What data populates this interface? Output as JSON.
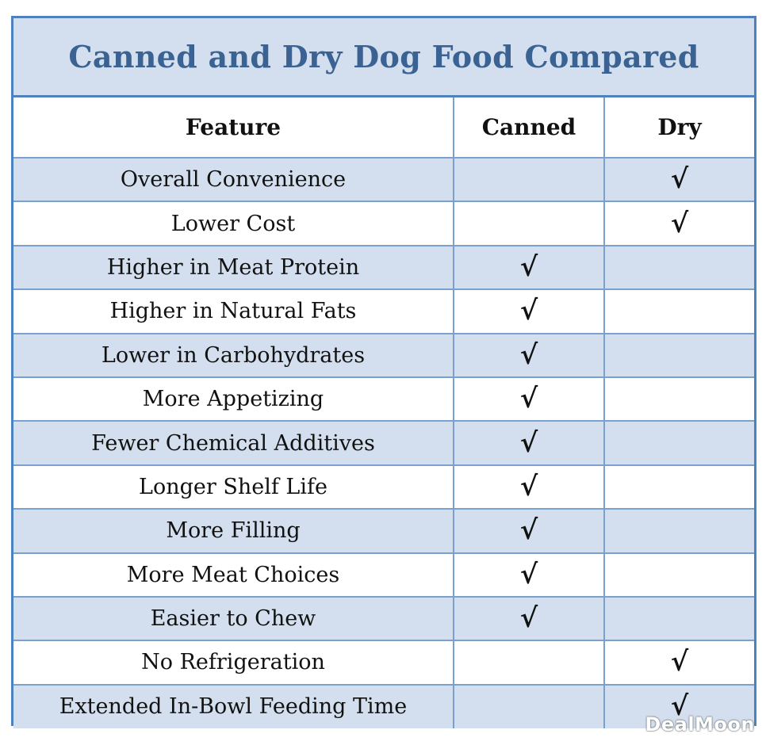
{
  "title": "Canned and Dry Dog Food Compared",
  "headers": {
    "feature": "Feature",
    "canned": "Canned",
    "dry": "Dry"
  },
  "check_mark": "√",
  "rows": [
    {
      "feature": "Overall Convenience",
      "canned": false,
      "dry": true
    },
    {
      "feature": "Lower Cost",
      "canned": false,
      "dry": true
    },
    {
      "feature": "Higher in Meat Protein",
      "canned": true,
      "dry": false
    },
    {
      "feature": "Higher in Natural Fats",
      "canned": true,
      "dry": false
    },
    {
      "feature": "Lower in Carbohydrates",
      "canned": true,
      "dry": false
    },
    {
      "feature": "More Appetizing",
      "canned": true,
      "dry": false
    },
    {
      "feature": "Fewer Chemical Additives",
      "canned": true,
      "dry": false
    },
    {
      "feature": "Longer Shelf Life",
      "canned": true,
      "dry": false
    },
    {
      "feature": "More Filling",
      "canned": true,
      "dry": false
    },
    {
      "feature": "More Meat Choices",
      "canned": true,
      "dry": false
    },
    {
      "feature": "Easier to Chew",
      "canned": true,
      "dry": false
    },
    {
      "feature": "No Refrigeration",
      "canned": false,
      "dry": true
    },
    {
      "feature": "Extended In-Bowl Feeding Time",
      "canned": false,
      "dry": true
    }
  ],
  "watermark": "DealMoon",
  "colors": {
    "border": "#4f81bd",
    "title_text": "#3a6394",
    "shaded_row": "#d3dfee"
  }
}
